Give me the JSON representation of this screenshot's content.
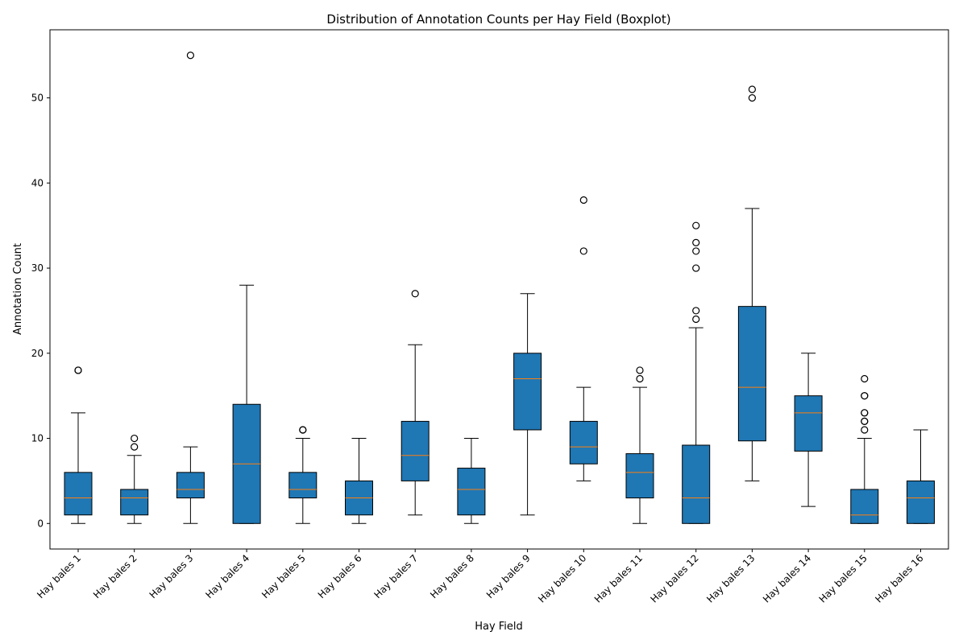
{
  "chart_data": {
    "type": "boxplot",
    "title": "Distribution of Annotation Counts per Hay Field (Boxplot)",
    "xlabel": "Hay Field",
    "ylabel": "Annotation Count",
    "ylim": [
      -3,
      58
    ],
    "yticks": [
      0,
      10,
      20,
      30,
      40,
      50
    ],
    "box_color": "#1f77b4",
    "median_color": "#ff7f0e",
    "grid": false,
    "boxes": [
      {
        "label": "Hay bales 1",
        "whislo": 0,
        "q1": 1,
        "med": 3,
        "q3": 6,
        "whishi": 13,
        "fliers": [
          18,
          18
        ]
      },
      {
        "label": "Hay bales 2",
        "whislo": 0,
        "q1": 1,
        "med": 3,
        "q3": 4,
        "whishi": 8,
        "fliers": [
          9,
          10
        ]
      },
      {
        "label": "Hay bales 3",
        "whislo": 0,
        "q1": 3,
        "med": 4,
        "q3": 6,
        "whishi": 9,
        "fliers": [
          55
        ]
      },
      {
        "label": "Hay bales 4",
        "whislo": 0,
        "q1": 0,
        "med": 7,
        "q3": 14,
        "whishi": 28,
        "fliers": []
      },
      {
        "label": "Hay bales 5",
        "whislo": 0,
        "q1": 3,
        "med": 4,
        "q3": 6,
        "whishi": 10,
        "fliers": [
          11,
          11
        ]
      },
      {
        "label": "Hay bales 6",
        "whislo": 0,
        "q1": 1,
        "med": 3,
        "q3": 5,
        "whishi": 10,
        "fliers": []
      },
      {
        "label": "Hay bales 7",
        "whislo": 1,
        "q1": 5,
        "med": 8,
        "q3": 12,
        "whishi": 21,
        "fliers": [
          27
        ]
      },
      {
        "label": "Hay bales 8",
        "whislo": 0,
        "q1": 1,
        "med": 4,
        "q3": 6.5,
        "whishi": 10,
        "fliers": []
      },
      {
        "label": "Hay bales 9",
        "whislo": 1,
        "q1": 11,
        "med": 17,
        "q3": 20,
        "whishi": 27,
        "fliers": []
      },
      {
        "label": "Hay bales 10",
        "whislo": 5,
        "q1": 7,
        "med": 9,
        "q3": 12,
        "whishi": 16,
        "fliers": [
          32,
          38
        ]
      },
      {
        "label": "Hay bales 11",
        "whislo": 0,
        "q1": 3,
        "med": 6,
        "q3": 8.2,
        "whishi": 16,
        "fliers": [
          17,
          18
        ]
      },
      {
        "label": "Hay bales 12",
        "whislo": 0,
        "q1": 0,
        "med": 3,
        "q3": 9.2,
        "whishi": 23,
        "fliers": [
          24,
          25,
          30,
          32,
          33,
          35
        ]
      },
      {
        "label": "Hay bales 13",
        "whislo": 5,
        "q1": 9.7,
        "med": 16,
        "q3": 25.5,
        "whishi": 37,
        "fliers": [
          50,
          51
        ]
      },
      {
        "label": "Hay bales 14",
        "whislo": 2,
        "q1": 8.5,
        "med": 13,
        "q3": 15,
        "whishi": 20,
        "fliers": []
      },
      {
        "label": "Hay bales 15",
        "whislo": 0,
        "q1": 0,
        "med": 1,
        "q3": 4,
        "whishi": 10,
        "fliers": [
          11,
          12,
          12,
          13,
          13,
          15,
          15,
          17
        ]
      },
      {
        "label": "Hay bales 16",
        "whislo": 0,
        "q1": 0,
        "med": 3,
        "q3": 5,
        "whishi": 11,
        "fliers": []
      }
    ]
  }
}
